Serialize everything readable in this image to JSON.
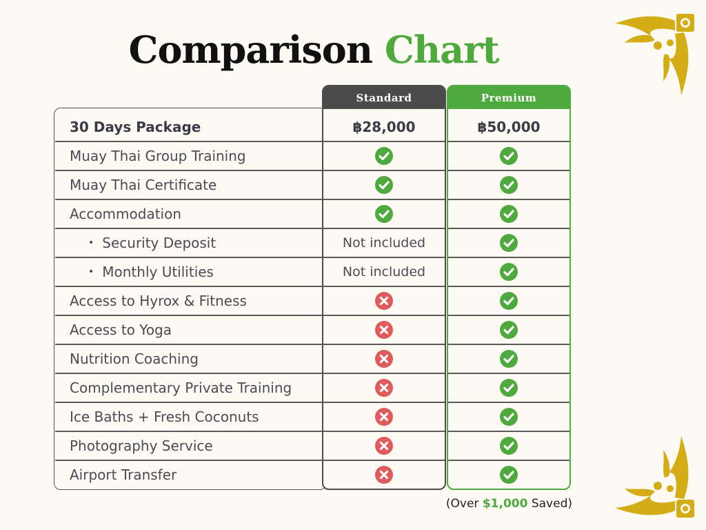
{
  "title": {
    "part1": "Comparison",
    "part2": "Chart"
  },
  "columns": {
    "standard": "Standard",
    "premium": "Premium"
  },
  "colors": {
    "accent": "#4ea93e",
    "dark": "#4b4b4b",
    "check": "#4ea93e",
    "cross": "#e05b5b",
    "gold": "#d4ac16"
  },
  "rows": [
    {
      "label": "30 Days Package",
      "standard": "฿28,000",
      "premium": "฿50,000"
    },
    {
      "label": "Muay Thai Group Training",
      "standard_icon": "check-icon",
      "premium_icon": "check-icon"
    },
    {
      "label": "Muay Thai Certificate",
      "standard_icon": "check-icon",
      "premium_icon": "check-icon"
    },
    {
      "label": "Accommodation",
      "standard_icon": "check-icon",
      "premium_icon": "check-icon"
    },
    {
      "label": "Security Deposit",
      "bullet": "•",
      "standard": "Not included",
      "premium_icon": "check-icon"
    },
    {
      "label": "Monthly Utilities",
      "bullet": "•",
      "standard": "Not included",
      "premium_icon": "check-icon"
    },
    {
      "label": "Access to Hyrox & Fitness",
      "standard_icon": "cross-icon",
      "premium_icon": "check-icon"
    },
    {
      "label": "Access to Yoga",
      "standard_icon": "cross-icon",
      "premium_icon": "check-icon"
    },
    {
      "label": "Nutrition Coaching",
      "standard_icon": "cross-icon",
      "premium_icon": "check-icon"
    },
    {
      "label": "Complementary Private Training",
      "standard_icon": "cross-icon",
      "premium_icon": "check-icon"
    },
    {
      "label": "Ice Baths + Fresh Coconuts",
      "standard_icon": "cross-icon",
      "premium_icon": "check-icon"
    },
    {
      "label": "Photography Service",
      "standard_icon": "cross-icon",
      "premium_icon": "check-icon"
    },
    {
      "label": "Airport Transfer",
      "standard_icon": "cross-icon",
      "premium_icon": "check-icon"
    }
  ],
  "footnote": {
    "prefix": "(Over ",
    "amount": "$1,000",
    "suffix": " Saved)"
  }
}
